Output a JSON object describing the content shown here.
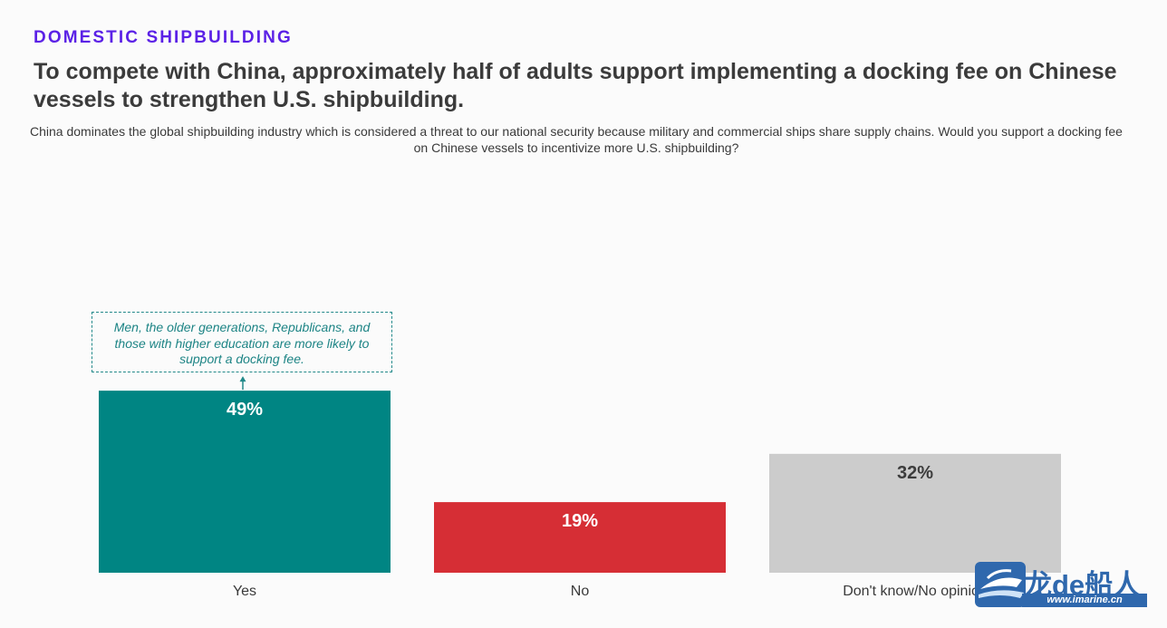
{
  "header": {
    "kicker": "DOMESTIC SHIPBUILDING",
    "title": "To compete with China, approximately half of adults support implementing a docking fee on Chinese vessels to strengthen U.S. shipbuilding.",
    "subtitle": "China dominates the global shipbuilding industry which is considered a threat to our national security because military and commercial ships share supply chains. Would you support a docking fee on Chinese vessels to incentivize more U.S. shipbuilding?"
  },
  "annotation": {
    "text": "Men, the older generations, Republicans, and those with higher education are more likely to support a docking fee."
  },
  "watermark": {
    "chinese": "龙de船人",
    "url": "www.imarine.cn"
  },
  "chart_data": {
    "type": "bar",
    "categories": [
      "Yes",
      "No",
      "Don't know/No opinion"
    ],
    "values": [
      49,
      19,
      32
    ],
    "value_labels": [
      "49%",
      "19%",
      "32%"
    ],
    "colors": [
      "#008583",
      "#d62e35",
      "#cccccc"
    ],
    "label_colors": [
      "#ffffff",
      "#ffffff",
      "#3c3c3c"
    ],
    "ylim": [
      0,
      100
    ],
    "grid": false,
    "legend": "none",
    "xlabel": "",
    "ylabel": ""
  }
}
